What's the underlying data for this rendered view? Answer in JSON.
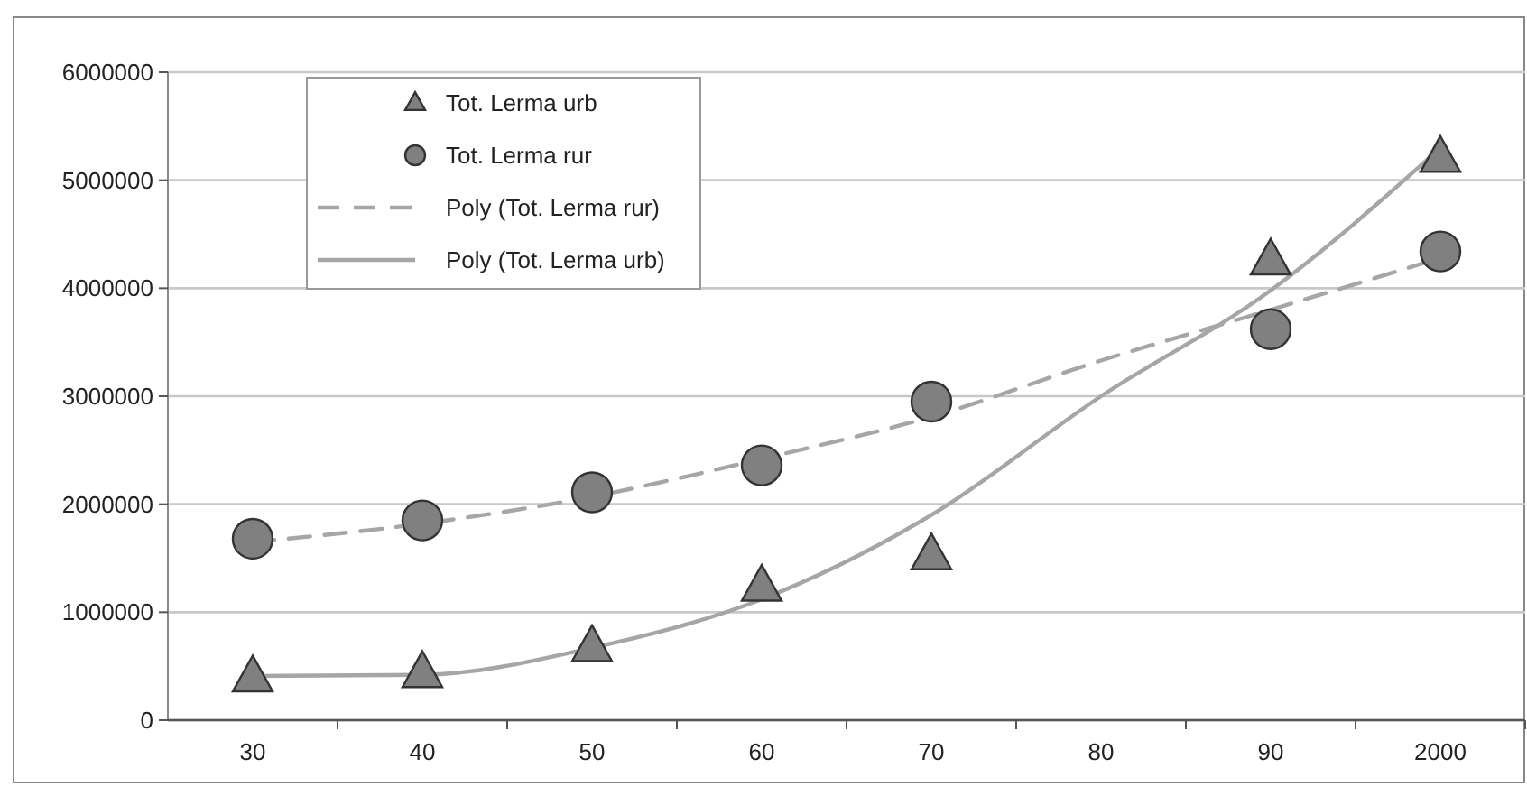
{
  "chart_data": {
    "type": "scatter",
    "categories": [
      "30",
      "40",
      "50",
      "60",
      "70",
      "80",
      "90",
      "2000"
    ],
    "ylim": [
      0,
      6000000
    ],
    "yticks": [
      0,
      1000000,
      2000000,
      3000000,
      4000000,
      5000000,
      6000000
    ],
    "grid": "y",
    "legend": "top left",
    "series": [
      {
        "name": "Tot. Lerma urb",
        "marker": "triangle",
        "color": "#808080",
        "values": [
          400000,
          440000,
          680000,
          1240000,
          1530000,
          null,
          4260000,
          5210000
        ]
      },
      {
        "name": "Tot. Lerma rur",
        "marker": "circle",
        "color": "#808080",
        "values": [
          1680000,
          1850000,
          2110000,
          2360000,
          2950000,
          null,
          3620000,
          4340000
        ]
      },
      {
        "name": "Poly (Tot. Lerma rur)",
        "type": "line",
        "marker": "none",
        "line_style": "dashed",
        "color": "#a6a6a6",
        "values": [
          1650000,
          1820000,
          2070000,
          2420000,
          2810000,
          3330000,
          3800000,
          4280000
        ]
      },
      {
        "name": "Poly (Tot. Lerma urb)",
        "type": "line",
        "marker": "none",
        "line_style": "solid",
        "color": "#a6a6a6",
        "values": [
          410000,
          420000,
          670000,
          1120000,
          1900000,
          3000000,
          3980000,
          5300000
        ]
      }
    ]
  }
}
